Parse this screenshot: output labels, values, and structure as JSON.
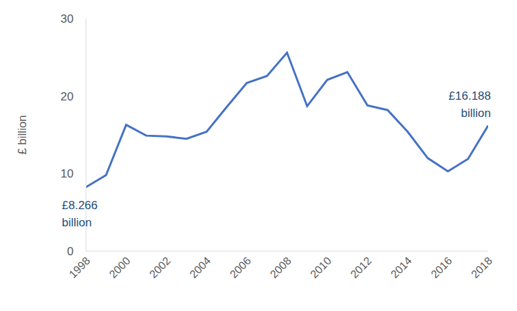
{
  "chart_data": {
    "type": "line",
    "y_label": "£ billion",
    "x": [
      1998,
      1999,
      2000,
      2001,
      2002,
      2003,
      2004,
      2005,
      2006,
      2007,
      2008,
      2009,
      2010,
      2011,
      2012,
      2013,
      2014,
      2015,
      2016,
      2017,
      2018
    ],
    "values": [
      8.266,
      9.8,
      16.3,
      14.9,
      14.8,
      14.5,
      15.4,
      18.6,
      21.7,
      22.6,
      25.6,
      18.7,
      22.1,
      23.1,
      18.8,
      18.2,
      15.4,
      12.0,
      10.3,
      11.9,
      16.188
    ],
    "color": "#4472c4",
    "xlim": [
      1998,
      2018
    ],
    "xticks": [
      1998,
      2000,
      2002,
      2004,
      2006,
      2008,
      2010,
      2012,
      2014,
      2016,
      2018
    ],
    "ylim": [
      0,
      30
    ],
    "yticks": [
      0,
      10,
      20,
      30
    ],
    "grid": false,
    "annotations": [
      {
        "x": 1998,
        "text": "£8.266 billion"
      },
      {
        "x": 2018,
        "text": "£16.188 billion"
      }
    ]
  }
}
